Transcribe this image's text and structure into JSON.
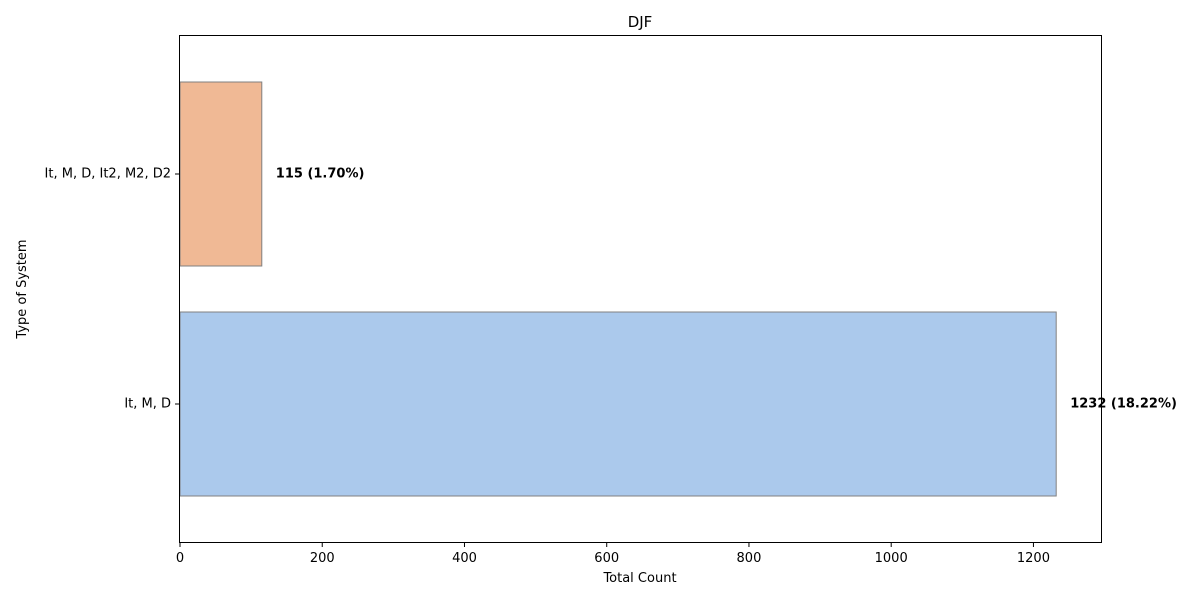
{
  "chart_data": {
    "type": "bar",
    "orientation": "horizontal",
    "title": "DJF",
    "xlabel": "Total Count",
    "ylabel": "Type of System",
    "xlim": [
      0,
      1295
    ],
    "xticks": [
      0,
      200,
      400,
      600,
      800,
      1000,
      1200
    ],
    "grid": false,
    "categories": [
      "It, M, D",
      "It, M, D, It2, M2, D2"
    ],
    "values": [
      1232,
      115
    ],
    "data_labels": [
      "1232 (18.22%)",
      "115 (1.70%)"
    ],
    "colors": [
      "#abc9ec",
      "#f0b995"
    ],
    "edge_color": "#808080"
  }
}
